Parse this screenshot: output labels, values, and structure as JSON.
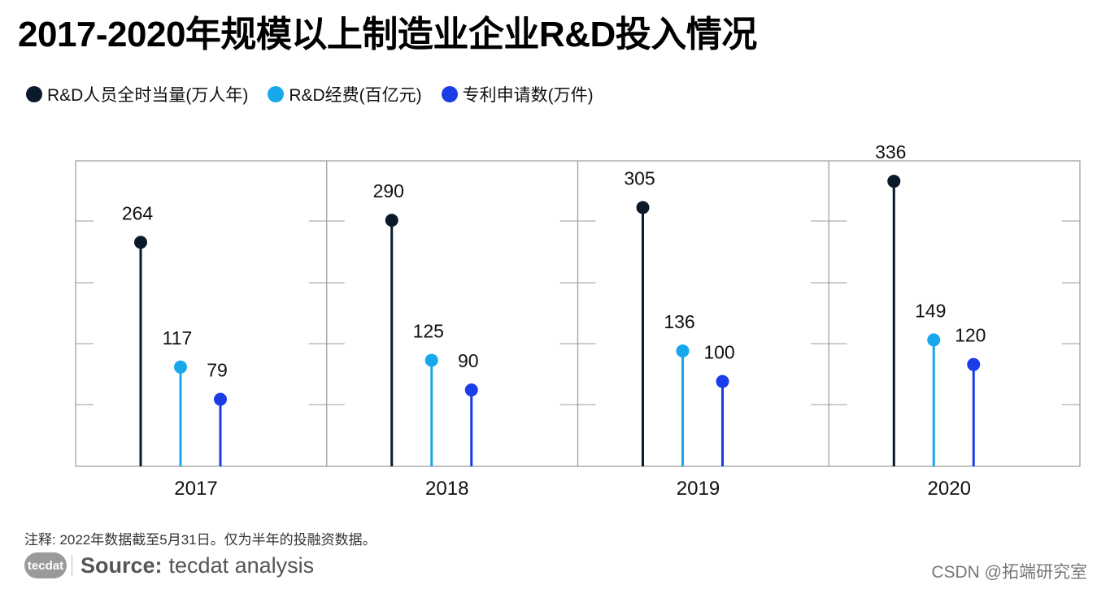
{
  "title": "2017-2020年规模以上制造业企业R&D投入情况",
  "colors": {
    "personnel": "#0b1a2b",
    "expense": "#17a8ec",
    "patents": "#1a3de8",
    "frame": "#9a9a9a"
  },
  "chart_data": {
    "type": "lollipop",
    "title": "2017-2020年规模以上制造业企业R&D投入情况",
    "categories": [
      "2017",
      "2018",
      "2019",
      "2020"
    ],
    "series": [
      {
        "name": "R&D人员全时当量(万人年)",
        "values": [
          264,
          290,
          305,
          336
        ]
      },
      {
        "name": "R&D经费(百亿元)",
        "values": [
          117,
          125,
          136,
          149
        ]
      },
      {
        "name": "专利申请数(万件)",
        "values": [
          79,
          90,
          100,
          120
        ]
      }
    ],
    "ylim": [
      0,
      360
    ],
    "legend_position": "top-left"
  },
  "footer": {
    "note": "注释: 2022年数据截至5月31日。仅为半年的投融资数据。",
    "logo": "tecdat",
    "source_label": "Source:",
    "source_text": "tecdat analysis",
    "watermark": "CSDN @拓端研究室"
  }
}
